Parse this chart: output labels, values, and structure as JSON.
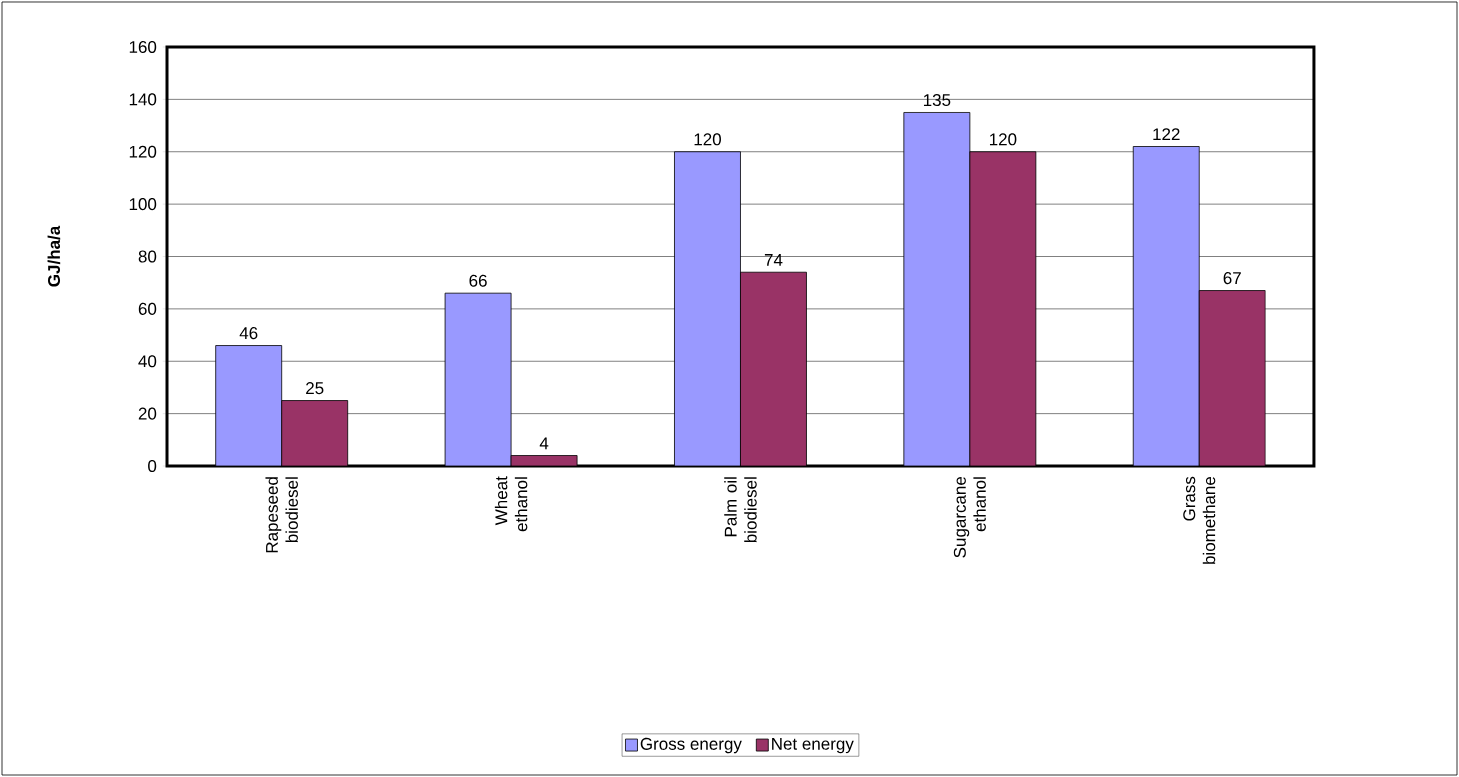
{
  "chart_data": {
    "type": "bar",
    "ylabel": "GJ/ha/a",
    "categories": [
      "Rapeseed biodiesel",
      "Wheat ethanol",
      "Palm oil biodiesel",
      "Sugarcane ethanol",
      "Grass biomethane"
    ],
    "series": [
      {
        "name": "Gross energy",
        "color": "#9999ff",
        "values": [
          46,
          66,
          120,
          135,
          122
        ]
      },
      {
        "name": "Net energy",
        "color": "#993366",
        "values": [
          25,
          4,
          74,
          120,
          67
        ]
      }
    ],
    "ylim": [
      0,
      160
    ],
    "yticks": [
      0,
      20,
      40,
      60,
      80,
      100,
      120,
      140,
      160
    ],
    "grid": "y",
    "legend": "bottom",
    "data_labels": true
  }
}
